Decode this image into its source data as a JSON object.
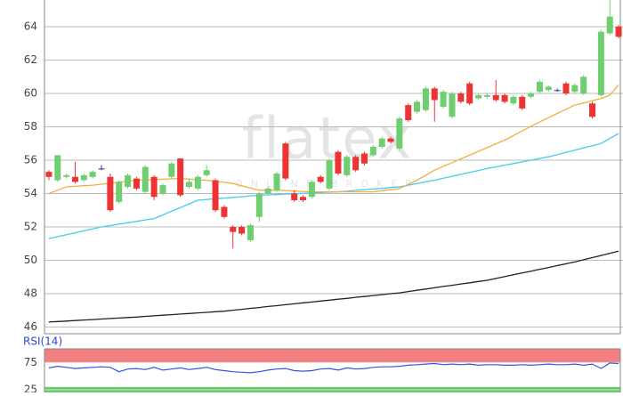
{
  "chart_data": {
    "type": "candlestick",
    "watermark": "flatex",
    "watermark_sub": "ONLINE BROKER",
    "up_color": "#6fce6f",
    "down_color": "#ee3333",
    "flat_color": "#2233bb",
    "ylim": [
      45.6,
      65.6
    ],
    "yticks": [
      46,
      48,
      50,
      52,
      54,
      56,
      58,
      60,
      62,
      64
    ],
    "grid": true,
    "ohlc": [
      [
        55.3,
        55.4,
        54.8,
        55.0
      ],
      [
        54.8,
        56.3,
        54.7,
        56.3
      ],
      [
        55.0,
        55.2,
        54.9,
        55.1
      ],
      [
        55.0,
        55.9,
        54.6,
        54.7
      ],
      [
        54.8,
        55.2,
        54.7,
        55.1
      ],
      [
        55.0,
        55.4,
        54.9,
        55.3
      ],
      [
        55.5,
        55.7,
        55.4,
        55.5
      ],
      [
        55.0,
        55.2,
        52.9,
        53.0
      ],
      [
        53.5,
        54.8,
        53.4,
        54.7
      ],
      [
        54.4,
        55.2,
        54.3,
        55.1
      ],
      [
        54.9,
        55.0,
        54.2,
        54.3
      ],
      [
        54.1,
        55.7,
        54.0,
        55.6
      ],
      [
        55.0,
        55.1,
        53.6,
        53.8
      ],
      [
        54.0,
        54.6,
        53.9,
        54.5
      ],
      [
        55.0,
        55.9,
        54.9,
        55.8
      ],
      [
        56.1,
        56.1,
        53.8,
        53.9
      ],
      [
        54.4,
        54.9,
        54.3,
        54.7
      ],
      [
        54.3,
        55.1,
        54.2,
        55.0
      ],
      [
        55.1,
        55.7,
        55.0,
        55.4
      ],
      [
        54.8,
        54.9,
        52.9,
        53.0
      ],
      [
        53.2,
        53.3,
        52.5,
        52.6
      ],
      [
        52.0,
        52.1,
        50.7,
        51.7
      ],
      [
        52.0,
        52.1,
        51.5,
        51.6
      ],
      [
        51.2,
        52.2,
        51.1,
        52.1
      ],
      [
        52.6,
        54.1,
        52.3,
        54.0
      ],
      [
        54.0,
        54.4,
        53.9,
        54.3
      ],
      [
        54.2,
        55.3,
        54.1,
        55.2
      ],
      [
        57.0,
        57.1,
        54.8,
        54.9
      ],
      [
        54.0,
        54.2,
        53.5,
        53.6
      ],
      [
        53.8,
        53.9,
        53.5,
        53.6
      ],
      [
        53.8,
        54.8,
        53.7,
        54.7
      ],
      [
        55.0,
        55.1,
        54.6,
        54.7
      ],
      [
        54.3,
        56.1,
        54.2,
        56.0
      ],
      [
        56.5,
        56.6,
        55.1,
        55.2
      ],
      [
        55.1,
        56.3,
        55.0,
        56.2
      ],
      [
        56.2,
        56.3,
        55.3,
        55.4
      ],
      [
        56.4,
        56.5,
        55.7,
        55.8
      ],
      [
        56.3,
        56.9,
        56.2,
        56.8
      ],
      [
        56.8,
        57.4,
        56.7,
        57.3
      ],
      [
        57.3,
        57.4,
        57.0,
        57.1
      ],
      [
        56.7,
        58.6,
        56.6,
        58.5
      ],
      [
        59.3,
        59.4,
        58.3,
        58.4
      ],
      [
        58.9,
        59.6,
        58.8,
        59.5
      ],
      [
        59.0,
        60.4,
        58.9,
        60.3
      ],
      [
        60.3,
        60.4,
        58.3,
        59.6
      ],
      [
        59.2,
        60.2,
        59.1,
        60.1
      ],
      [
        58.6,
        60.1,
        58.5,
        60.0
      ],
      [
        60.0,
        60.1,
        59.4,
        59.5
      ],
      [
        60.6,
        60.7,
        59.3,
        59.4
      ],
      [
        59.7,
        60.0,
        59.6,
        59.9
      ],
      [
        59.8,
        60.0,
        59.7,
        59.9
      ],
      [
        59.9,
        60.8,
        59.5,
        59.6
      ],
      [
        59.9,
        60.0,
        59.4,
        59.5
      ],
      [
        59.4,
        59.9,
        59.3,
        59.8
      ],
      [
        59.8,
        59.9,
        59.0,
        59.1
      ],
      [
        59.8,
        60.1,
        59.7,
        60.0
      ],
      [
        60.1,
        60.8,
        60.0,
        60.7
      ],
      [
        60.2,
        60.5,
        60.1,
        60.4
      ],
      [
        60.2,
        60.3,
        60.1,
        60.2
      ],
      [
        60.6,
        60.7,
        59.9,
        60.0
      ],
      [
        60.1,
        60.6,
        60.0,
        60.5
      ],
      [
        60.0,
        61.1,
        59.9,
        61.0
      ],
      [
        59.4,
        59.5,
        58.5,
        58.6
      ],
      [
        59.9,
        63.8,
        59.8,
        63.7
      ],
      [
        63.6,
        66.0,
        63.5,
        64.6
      ],
      [
        64.0,
        64.1,
        63.3,
        63.4
      ]
    ],
    "overlays": [
      {
        "color": "#222222",
        "values": [
          46.3,
          46.33,
          46.36,
          46.39,
          46.42,
          46.45,
          46.48,
          46.51,
          46.54,
          46.57,
          46.6,
          46.64,
          46.67,
          46.71,
          46.74,
          46.78,
          46.81,
          46.85,
          46.88,
          46.92,
          46.95,
          47.01,
          47.06,
          47.12,
          47.17,
          47.23,
          47.28,
          47.34,
          47.39,
          47.45,
          47.5,
          47.56,
          47.61,
          47.67,
          47.72,
          47.78,
          47.83,
          47.89,
          47.94,
          48.0,
          48.05,
          48.13,
          48.2,
          48.28,
          48.35,
          48.43,
          48.5,
          48.58,
          48.65,
          48.73,
          48.8,
          48.91,
          49.02,
          49.13,
          49.24,
          49.35,
          49.46,
          49.57,
          49.68,
          49.79,
          49.9,
          50.03,
          50.16,
          50.29,
          50.42,
          50.55
        ]
      },
      {
        "color": "#44ccee",
        "values": [
          51.3,
          51.42,
          51.53,
          51.65,
          51.77,
          51.88,
          52.0,
          52.08,
          52.17,
          52.25,
          52.33,
          52.42,
          52.5,
          52.72,
          52.94,
          53.16,
          53.38,
          53.6,
          53.64,
          53.69,
          53.73,
          53.77,
          53.81,
          53.86,
          53.9,
          53.92,
          53.94,
          53.97,
          53.99,
          54.01,
          54.03,
          54.06,
          54.08,
          54.1,
          54.14,
          54.19,
          54.23,
          54.27,
          54.31,
          54.36,
          54.4,
          54.5,
          54.6,
          54.7,
          54.8,
          54.92,
          55.03,
          55.15,
          55.27,
          55.38,
          55.5,
          55.6,
          55.7,
          55.8,
          55.9,
          56.0,
          56.1,
          56.2,
          56.33,
          56.47,
          56.6,
          56.73,
          56.87,
          57.0,
          57.3,
          57.6
        ]
      },
      {
        "color": "#f0b040",
        "values": [
          54.0,
          54.2,
          54.4,
          54.43,
          54.47,
          54.5,
          54.56,
          54.62,
          54.68,
          54.74,
          54.8,
          54.82,
          54.84,
          54.86,
          54.88,
          54.9,
          54.87,
          54.83,
          54.8,
          54.73,
          54.67,
          54.6,
          54.47,
          54.33,
          54.2,
          54.2,
          54.2,
          54.18,
          54.15,
          54.13,
          54.1,
          54.1,
          54.1,
          54.1,
          54.1,
          54.1,
          54.1,
          54.1,
          54.17,
          54.23,
          54.3,
          54.55,
          54.8,
          55.1,
          55.4,
          55.63,
          55.85,
          56.08,
          56.3,
          56.53,
          56.75,
          56.98,
          57.2,
          57.48,
          57.75,
          58.03,
          58.3,
          58.55,
          58.8,
          59.05,
          59.3,
          59.43,
          59.57,
          59.7,
          59.9,
          60.5
        ]
      }
    ],
    "rsi": {
      "label": "RSI(14)",
      "color": "#3355dd",
      "ylim": [
        20,
        100
      ],
      "yticks": [
        25,
        75
      ],
      "overbought": [
        75,
        100
      ],
      "overbought_color": "#f28080",
      "oversold": [
        20,
        30
      ],
      "oversold_color": "#66cc66",
      "values": [
        65,
        68,
        66,
        64,
        65,
        66,
        67,
        66,
        58,
        63,
        64,
        62,
        66,
        61,
        63,
        65,
        62,
        64,
        66,
        62,
        60,
        58,
        57,
        56,
        58,
        61,
        63,
        64,
        60,
        59,
        60,
        63,
        64,
        61,
        65,
        63,
        64,
        66,
        67,
        67,
        68,
        70,
        71,
        72,
        73,
        71,
        72,
        71,
        72,
        70,
        71,
        71,
        70,
        70,
        71,
        70,
        71,
        72,
        71,
        71,
        72,
        70,
        72,
        64,
        74,
        73
      ]
    }
  }
}
